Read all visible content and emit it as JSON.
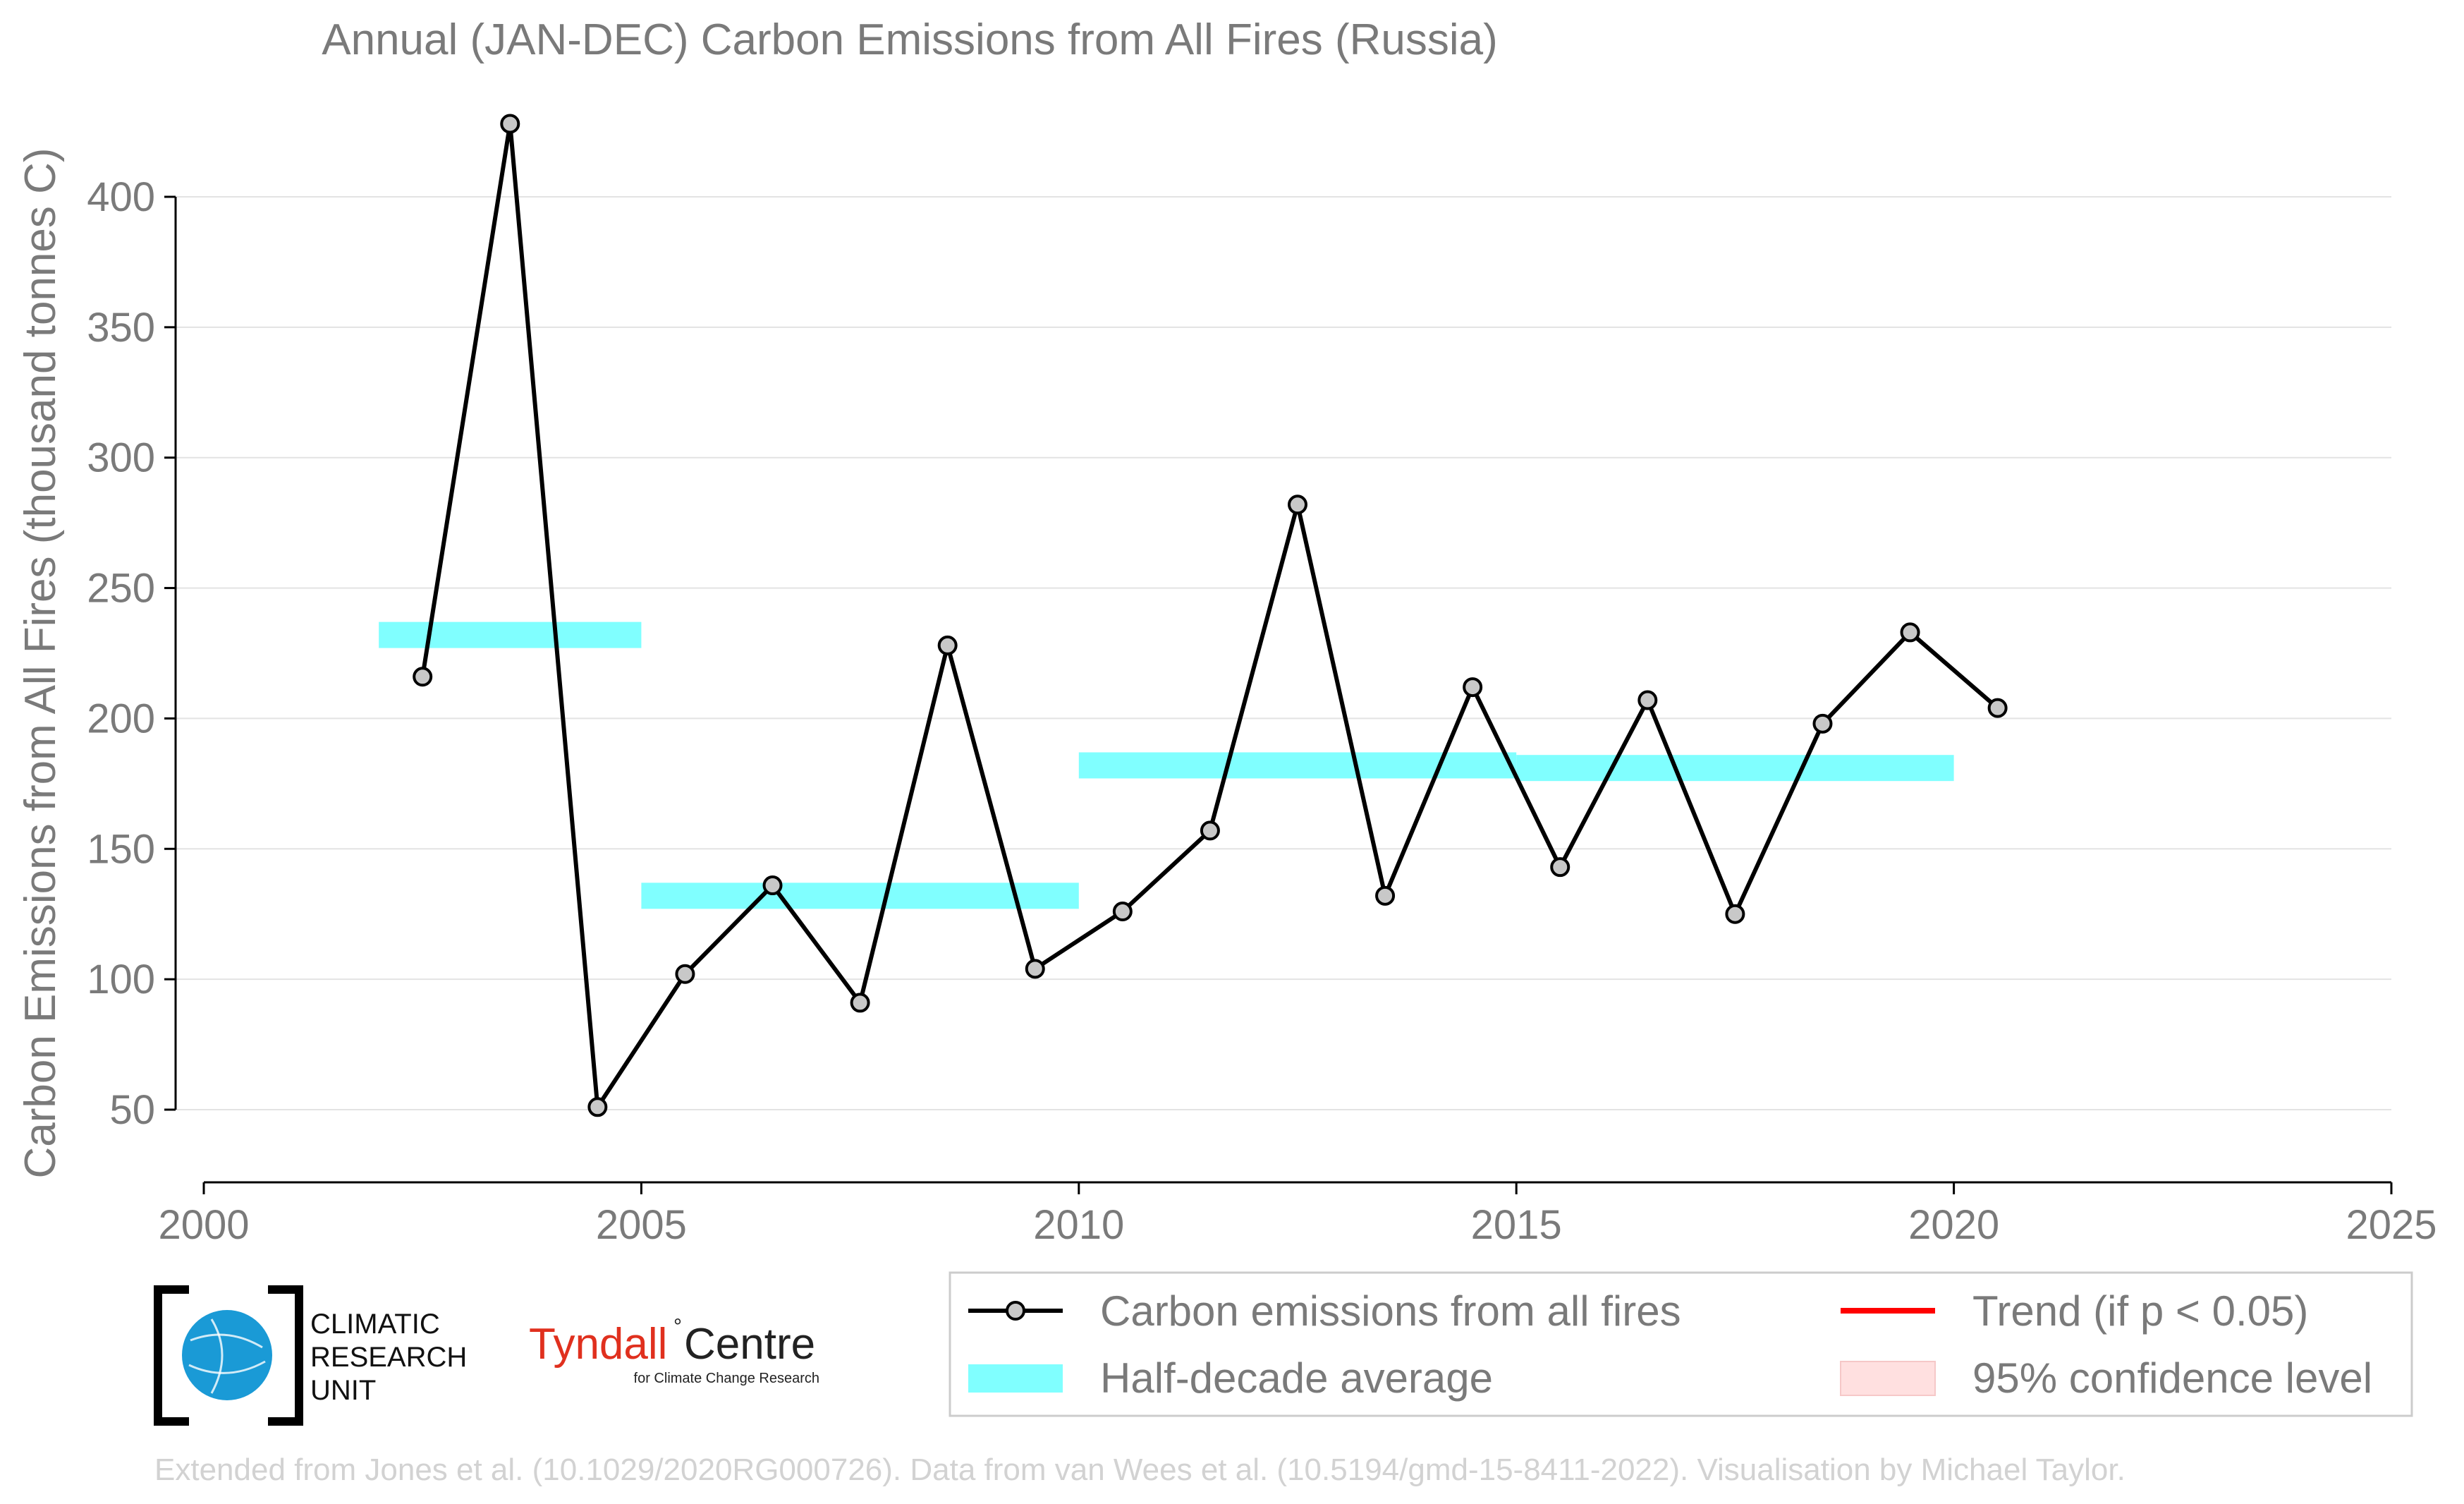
{
  "chart_data": {
    "type": "line",
    "title": "Annual (JAN-DEC) Carbon Emissions from All Fires (Russia)",
    "xlabel": "",
    "ylabel": "Carbon Emissions from All Fires (thousand tonnes C)",
    "xlim": [
      2000,
      2025
    ],
    "ylim": [
      25,
      440
    ],
    "x_ticks": [
      "2000",
      "2005",
      "2010",
      "2015",
      "2020",
      "2025"
    ],
    "y_ticks": [
      "50",
      "100",
      "150",
      "200",
      "250",
      "300",
      "350",
      "400"
    ],
    "grid": "horizontal",
    "legend_position": "bottom-right",
    "series": [
      {
        "name": "Carbon emissions from all fires",
        "x": [
          2002.5,
          2003.5,
          2004.5,
          2005.5,
          2006.5,
          2007.5,
          2008.5,
          2009.5,
          2010.5,
          2011.5,
          2012.5,
          2013.5,
          2014.5,
          2015.5,
          2016.5,
          2017.5,
          2018.5,
          2019.5,
          2020.5
        ],
        "y": [
          216,
          428,
          51,
          102,
          136,
          91,
          228,
          104,
          126,
          157,
          282,
          132,
          212,
          143,
          207,
          125,
          198,
          233,
          204
        ],
        "color": "#000000",
        "marker_fill": "#c8c8c8"
      }
    ],
    "half_decade_average": {
      "name": "Half-decade average",
      "color": "#80ffff",
      "segments": [
        {
          "x0": 2002,
          "x1": 2005,
          "y": 232
        },
        {
          "x0": 2005,
          "x1": 2010,
          "y": 132
        },
        {
          "x0": 2010,
          "x1": 2015,
          "y": 182
        },
        {
          "x0": 2015,
          "x1": 2020,
          "y": 181
        }
      ]
    },
    "legend": [
      {
        "label": "Carbon emissions from all fires",
        "kind": "line-marker",
        "color": "#000000"
      },
      {
        "label": "Trend (if p < 0.05)",
        "kind": "line",
        "color": "#ff0000"
      },
      {
        "label": "Half-decade average",
        "kind": "band",
        "color": "#80ffff"
      },
      {
        "label": "95% confidence level",
        "kind": "patch",
        "color": "#ffe0e0"
      }
    ]
  },
  "logos": {
    "cru": [
      "CLIMATIC",
      "RESEARCH",
      "UNIT"
    ],
    "tyndall_main_1": "Tyndall",
    "tyndall_main_2": "Centre",
    "tyndall_sub": "for Climate Change Research"
  },
  "credit": "Extended from Jones et al. (10.1029/2020RG000726). Data from van Wees et al. (10.5194/gmd-15-8411-2022). Visualisation by Michael Taylor."
}
